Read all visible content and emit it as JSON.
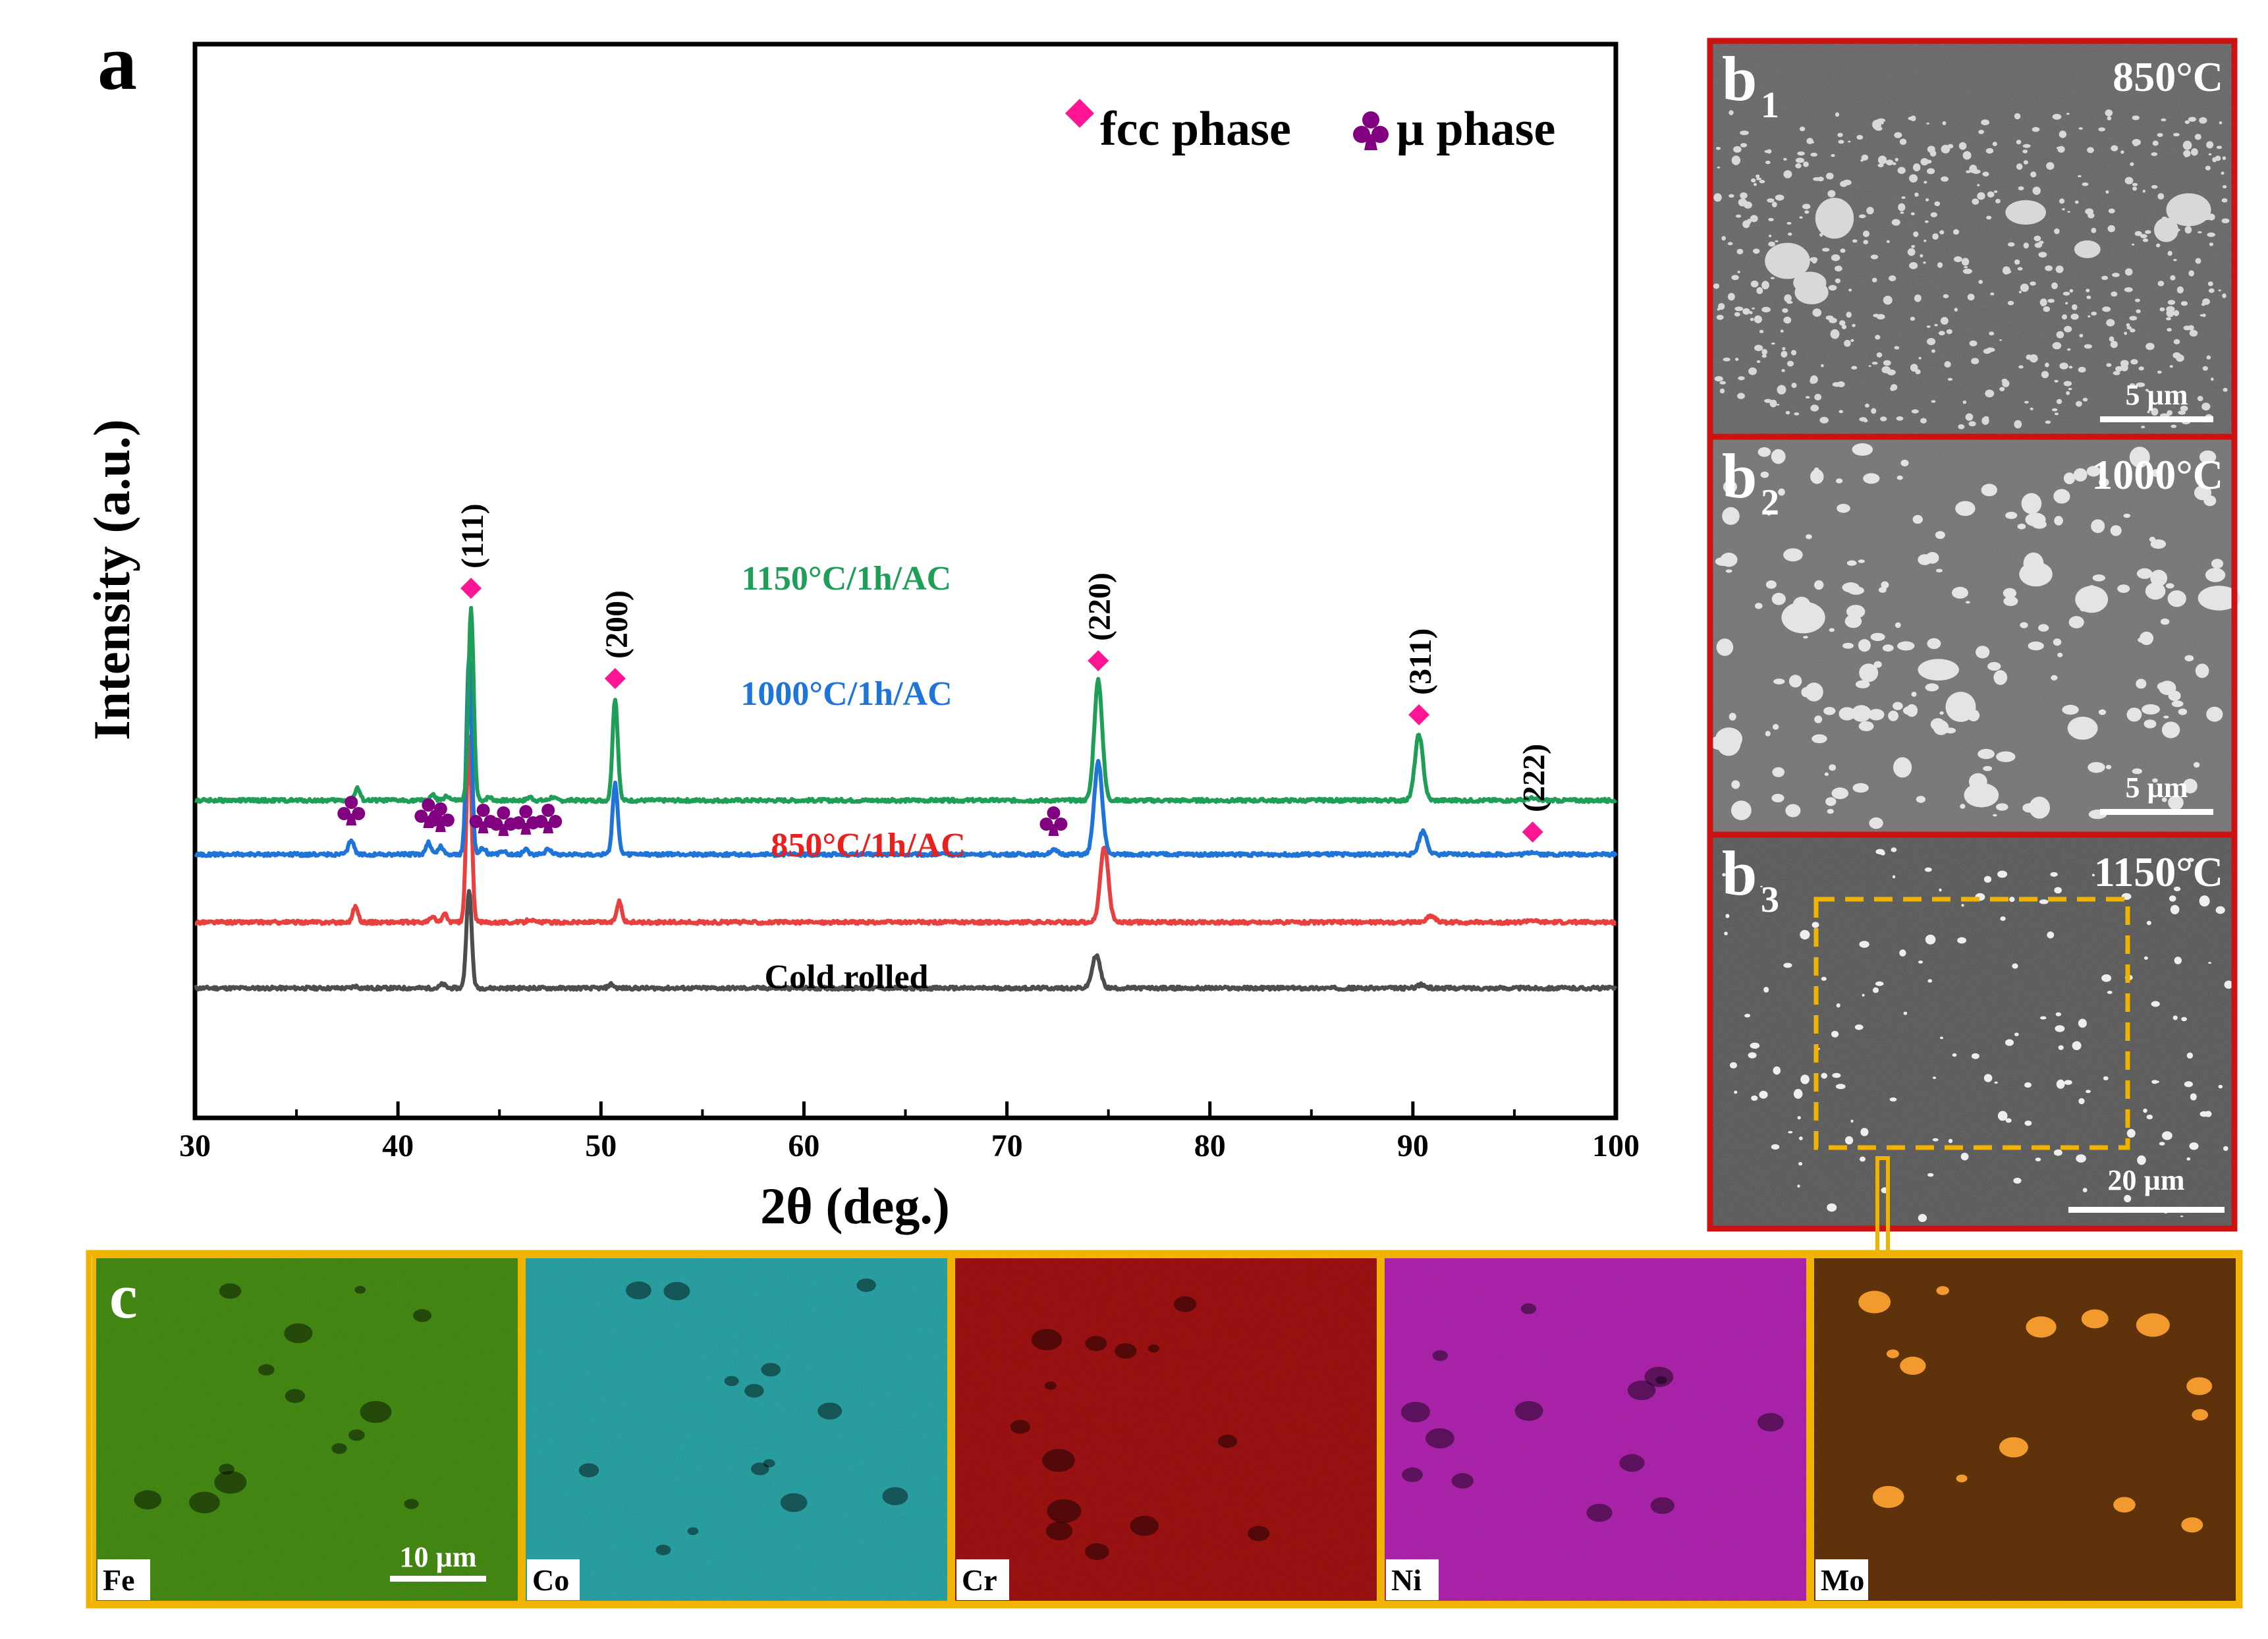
{
  "panel_a": {
    "letter": "a",
    "legend": {
      "fcc_label": "fcc phase",
      "mu_label": "μ phase",
      "fcc_color": "#ff1493",
      "mu_color": "#800080"
    }
  },
  "chart_data": {
    "type": "line",
    "title": "",
    "xlabel": "2θ (deg.)",
    "ylabel": "Intensity (a.u.)",
    "xlim": [
      30,
      100
    ],
    "xticks": [
      30,
      40,
      50,
      60,
      70,
      80,
      90,
      100
    ],
    "grid": false,
    "legend_position": "top-right",
    "series": [
      {
        "name": "Cold rolled",
        "color": "#4d4d4d",
        "baseline": 0,
        "peaks": [
          [
            43.5,
            150
          ],
          [
            50.5,
            6
          ],
          [
            74.4,
            50
          ],
          [
            90.4,
            5
          ],
          [
            37.9,
            3
          ],
          [
            42.2,
            6
          ]
        ]
      },
      {
        "name": "850°C/1h/AC",
        "color": "#e8403e",
        "baseline": 100,
        "peaks": [
          [
            43.5,
            282
          ],
          [
            37.9,
            24
          ],
          [
            41.7,
            8
          ],
          [
            42.3,
            12
          ],
          [
            50.9,
            32
          ],
          [
            74.8,
            115
          ],
          [
            90.9,
            10
          ],
          [
            95.8,
            3
          ],
          [
            46.5,
            5
          ]
        ]
      },
      {
        "name": "1000°C/1h/AC",
        "color": "#1e74d8",
        "baseline": 203,
        "peaks": [
          [
            43.5,
            300
          ],
          [
            37.7,
            22
          ],
          [
            41.5,
            18
          ],
          [
            42.1,
            12
          ],
          [
            44.2,
            10
          ],
          [
            45.2,
            6
          ],
          [
            46.3,
            8
          ],
          [
            47.4,
            10
          ],
          [
            50.7,
            108
          ],
          [
            72.3,
            6
          ],
          [
            74.5,
            140
          ],
          [
            90.5,
            35
          ],
          [
            95.9,
            4
          ]
        ]
      },
      {
        "name": "1150°C/1h/AC",
        "color": "#1f9e58",
        "baseline": 285,
        "peaks": [
          [
            43.6,
            292
          ],
          [
            38.0,
            18
          ],
          [
            41.7,
            8
          ],
          [
            42.4,
            7
          ],
          [
            44.5,
            5
          ],
          [
            46.5,
            5
          ],
          [
            47.6,
            5
          ],
          [
            50.7,
            155
          ],
          [
            74.5,
            182
          ],
          [
            90.3,
            100
          ],
          [
            95.8,
            3
          ]
        ]
      }
    ],
    "annotations": {
      "hkl": [
        {
          "label": "(111)",
          "x": 43.6
        },
        {
          "label": "(200)",
          "x": 50.7
        },
        {
          "label": "(220)",
          "x": 74.5
        },
        {
          "label": "(311)",
          "x": 90.3
        },
        {
          "label": "(222)",
          "x": 95.9
        }
      ],
      "fcc_markers": [
        43.6,
        50.7,
        74.5,
        90.3,
        95.9
      ],
      "mu_markers": [
        37.7,
        41.5,
        42.1,
        44.2,
        45.2,
        46.3,
        47.4,
        72.3
      ]
    }
  },
  "panel_b": [
    {
      "letter": "b",
      "sub": "1",
      "temp": "850°C",
      "scale": "5 µm"
    },
    {
      "letter": "b",
      "sub": "2",
      "temp": "1000°C",
      "scale": "5 µm"
    },
    {
      "letter": "b",
      "sub": "3",
      "temp": "1150°C",
      "scale": "20 µm"
    }
  ],
  "panel_c": {
    "letter": "c",
    "scale": "10 µm",
    "maps": [
      {
        "element": "Fe",
        "color": "#4d9b16"
      },
      {
        "element": "Co",
        "color": "#2fb6b8"
      },
      {
        "element": "Cr",
        "color": "#b01414"
      },
      {
        "element": "Ni",
        "color": "#c228c2"
      },
      {
        "element": "Mo",
        "color": "#6e3a0c"
      }
    ]
  },
  "colors": {
    "sem_frame": "#cc1111",
    "highlight": "#f0b400"
  }
}
